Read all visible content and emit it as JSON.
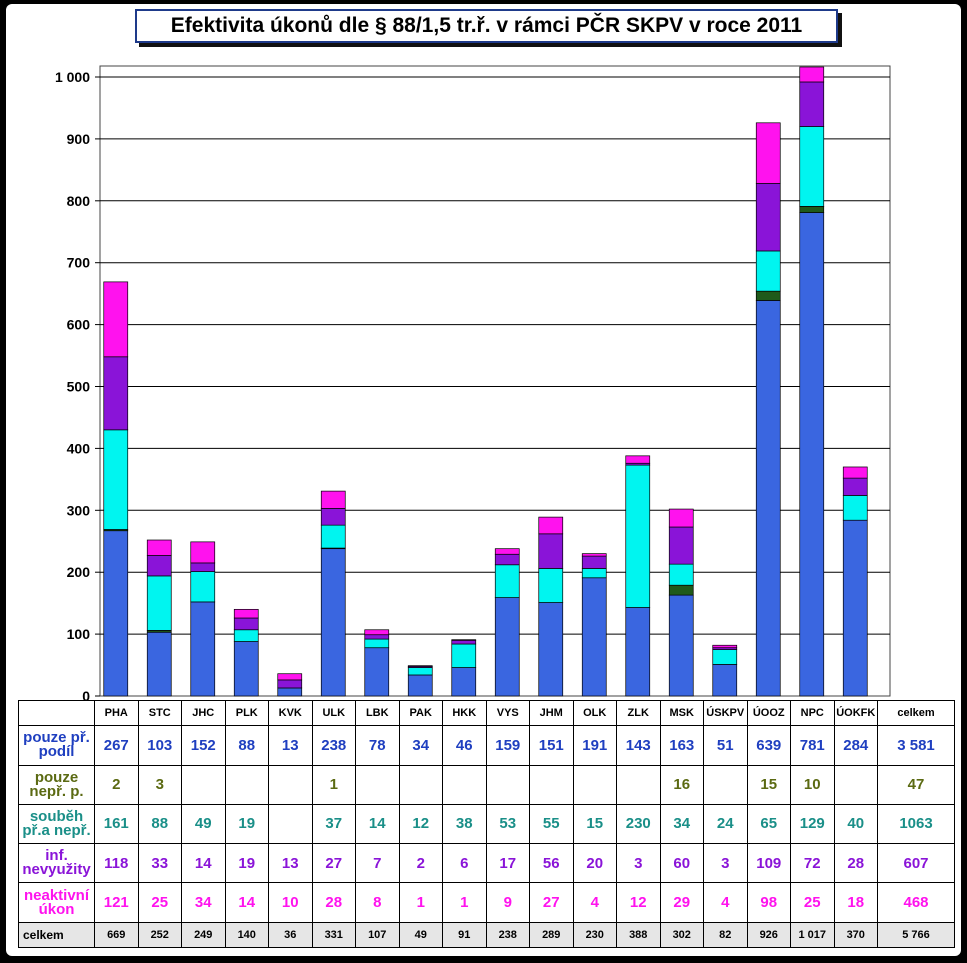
{
  "title": "Efektivita úkonů dle § 88/1,5 tr.ř. v rámci PČR SKPV v roce 2011",
  "chart_data": {
    "type": "bar",
    "stacked": true,
    "categories": [
      "PHA",
      "STC",
      "JHC",
      "PLK",
      "KVK",
      "ULK",
      "LBK",
      "PAK",
      "HKK",
      "VYS",
      "JHM",
      "OLK",
      "ZLK",
      "MSK",
      "ÚSKPV",
      "ÚOOZ",
      "NPC",
      "ÚOKFK"
    ],
    "ylim": [
      0,
      1000
    ],
    "yticks": [
      "0",
      "100",
      "200",
      "300",
      "400",
      "500",
      "600",
      "700",
      "800",
      "900",
      "1 000"
    ],
    "grid": true,
    "series": [
      {
        "name": "pouze př. podíl",
        "color": "#3a66e0",
        "values": [
          267,
          103,
          152,
          88,
          13,
          238,
          78,
          34,
          46,
          159,
          151,
          191,
          143,
          163,
          51,
          639,
          781,
          284
        ]
      },
      {
        "name": "pouze nepř. p.",
        "color": "#1f5a1a",
        "values": [
          2,
          3,
          0,
          0,
          0,
          1,
          0,
          0,
          0,
          0,
          0,
          0,
          0,
          16,
          0,
          15,
          10,
          0
        ]
      },
      {
        "name": "souběh př.a nepř.",
        "color": "#00f5f0",
        "values": [
          161,
          88,
          49,
          19,
          0,
          37,
          14,
          12,
          38,
          53,
          55,
          15,
          230,
          34,
          24,
          65,
          129,
          40
        ]
      },
      {
        "name": "inf. nevyužity",
        "color": "#8a14d8",
        "values": [
          118,
          33,
          14,
          19,
          13,
          27,
          7,
          2,
          6,
          17,
          56,
          20,
          3,
          60,
          3,
          109,
          72,
          28
        ]
      },
      {
        "name": "neaktivní úkon",
        "color": "#ff12ee",
        "values": [
          121,
          25,
          34,
          14,
          10,
          28,
          8,
          1,
          1,
          9,
          27,
          4,
          12,
          29,
          4,
          98,
          25,
          18
        ]
      }
    ],
    "totals": [
      "669",
      "252",
      "249",
      "140",
      "36",
      "331",
      "107",
      "49",
      "91",
      "238",
      "289",
      "230",
      "388",
      "302",
      "82",
      "926",
      "1 017",
      "370"
    ]
  },
  "table": {
    "header": [
      "PHA",
      "STC",
      "JHC",
      "PLK",
      "KVK",
      "ULK",
      "LBK",
      "PAK",
      "HKK",
      "VYS",
      "JHM",
      "OLK",
      "ZLK",
      "MSK",
      "ÚSKPV",
      "ÚOOZ",
      "NPC",
      "ÚOKFK",
      "celkem"
    ],
    "rows": [
      {
        "label_1": "pouze př.",
        "label_2": "podíl",
        "color": "#1f3fc0",
        "cells": [
          "267",
          "103",
          "152",
          "88",
          "13",
          "238",
          "78",
          "34",
          "46",
          "159",
          "151",
          "191",
          "143",
          "163",
          "51",
          "639",
          "781",
          "284",
          "3 581"
        ]
      },
      {
        "label_1": "pouze",
        "label_2": "nepř. p.",
        "color": "#5b6a12",
        "cells": [
          "2",
          "3",
          "",
          "",
          "",
          "1",
          "",
          "",
          "",
          "",
          "",
          "",
          "",
          "16",
          "",
          "15",
          "10",
          "",
          "47"
        ]
      },
      {
        "label_1": "souběh",
        "label_2": "př.a nepř.",
        "color": "#1a8f88",
        "cells": [
          "161",
          "88",
          "49",
          "19",
          "",
          "37",
          "14",
          "12",
          "38",
          "53",
          "55",
          "15",
          "230",
          "34",
          "24",
          "65",
          "129",
          "40",
          "1063"
        ]
      },
      {
        "label_1": "inf.",
        "label_2": "nevyužity",
        "color": "#8a14d8",
        "cells": [
          "118",
          "33",
          "14",
          "19",
          "13",
          "27",
          "7",
          "2",
          "6",
          "17",
          "56",
          "20",
          "3",
          "60",
          "3",
          "109",
          "72",
          "28",
          "607"
        ]
      },
      {
        "label_1": "neaktivní",
        "label_2": "úkon",
        "color": "#ff12ee",
        "cells": [
          "121",
          "25",
          "34",
          "14",
          "10",
          "28",
          "8",
          "1",
          "1",
          "9",
          "27",
          "4",
          "12",
          "29",
          "4",
          "98",
          "25",
          "18",
          "468"
        ]
      }
    ],
    "total_label": "celkem",
    "total_cells": [
      "669",
      "252",
      "249",
      "140",
      "36",
      "331",
      "107",
      "49",
      "91",
      "238",
      "289",
      "230",
      "388",
      "302",
      "82",
      "926",
      "1 017",
      "370",
      "5 766"
    ]
  }
}
